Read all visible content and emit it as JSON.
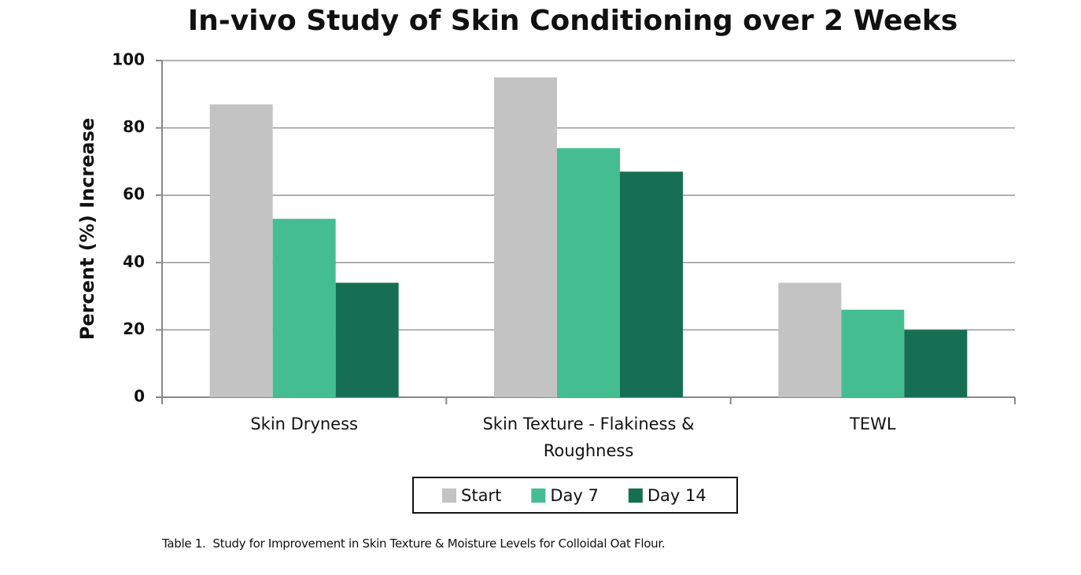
{
  "chart_data": {
    "type": "bar",
    "title": "In-vivo Study of Skin Conditioning over 2 Weeks",
    "y_label": "Percent (%) Increase",
    "categories": [
      "Skin Dryness",
      "Skin Texture - Flakiness & Roughness",
      "TEWL"
    ],
    "series": [
      {
        "name": "Start",
        "color": "#c3c3c3",
        "values": [
          87,
          95,
          34
        ]
      },
      {
        "name": "Day 7",
        "color": "#45bd93",
        "values": [
          53,
          74,
          26
        ]
      },
      {
        "name": "Day 14",
        "color": "#166f52",
        "values": [
          34,
          67,
          20
        ]
      }
    ],
    "ylim": [
      0,
      100
    ],
    "yticks": [
      0,
      20,
      40,
      60,
      80,
      100
    ],
    "grid": true,
    "legend": "bottom",
    "caption": "Table 1.  Study for Improvement in Skin Texture & Moisture Levels for Colloidal Oat Flour."
  }
}
